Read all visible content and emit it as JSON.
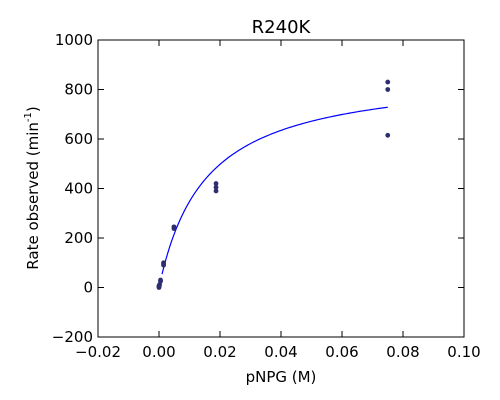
{
  "chart_data": {
    "type": "scatter",
    "title": "R240K",
    "xlabel": "pNPG (M)",
    "ylabel": {
      "prefix": "Rate observed (min",
      "superscript": "-1",
      "suffix": ")"
    },
    "xlim": [
      -0.02,
      0.1
    ],
    "ylim": [
      -200,
      1000
    ],
    "xticks": [
      "−0.02",
      "0.00",
      "0.02",
      "0.04",
      "0.06",
      "0.08",
      "0.10"
    ],
    "xtick_values": [
      -0.02,
      0.0,
      0.02,
      0.04,
      0.06,
      0.08,
      0.1
    ],
    "yticks": [
      "−200",
      "0",
      "200",
      "400",
      "600",
      "800",
      "1000"
    ],
    "ytick_values": [
      -200,
      0,
      200,
      400,
      600,
      800,
      1000
    ],
    "grid": false,
    "series": [
      {
        "kind": "points",
        "color": "#2e2e6e",
        "x": [
          0.0,
          0.0,
          0.0,
          5e-05,
          0.0001,
          0.0002,
          0.0005,
          0.0005,
          0.0015,
          0.0015,
          0.0015,
          0.0049,
          0.0049,
          0.0187,
          0.0187,
          0.0187,
          0.075,
          0.075,
          0.075
        ],
        "y": [
          0,
          3,
          7,
          5,
          8,
          12,
          25,
          30,
          90,
          95,
          100,
          238,
          245,
          390,
          405,
          420,
          615,
          800,
          830
        ]
      },
      {
        "kind": "fit",
        "color": "#0000ff",
        "model": "michaelis-menten",
        "vmax": 876,
        "km": 0.0152,
        "x_range": [
          0.001,
          0.075
        ]
      }
    ]
  }
}
